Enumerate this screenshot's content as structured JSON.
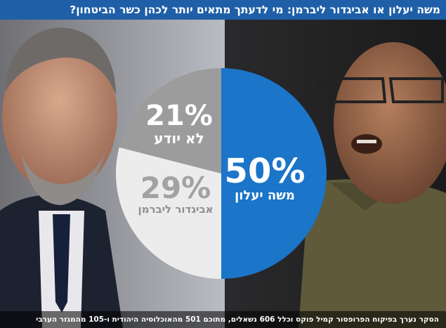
{
  "header": {
    "title": "משה יעלון או אביגדור ליברמן: מי לדעתך מתאים יותר לכהן כשר הביטחון?"
  },
  "colors": {
    "title_bar": "#1f5fa8",
    "yaalon_slice": "#1b75c9",
    "liberman_slice": "#ececec",
    "dont_know_slice": "#9c9c9c"
  },
  "chart_data": {
    "type": "pie",
    "title": "משה יעלון או אביגדור ליברמן: מי לדעתך מתאים יותר לכהן כשר הביטחון?",
    "slices": [
      {
        "label": "משה יעלון",
        "value": 50,
        "value_label": "50%",
        "color": "#1b75c9"
      },
      {
        "label": "אביגדור ליברמן",
        "value": 29,
        "value_label": "29%",
        "color": "#ececec"
      },
      {
        "label": "לא יודע",
        "value": 21,
        "value_label": "21%",
        "color": "#9c9c9c"
      }
    ]
  },
  "footnote": "הסקר נערך בפיקוח הפרופסור קמיל פוקס וכלל 606 נשאלים, מתוכם 501 מהאוכלוסיה היהודית ו-105 מהמגזר הערבי"
}
